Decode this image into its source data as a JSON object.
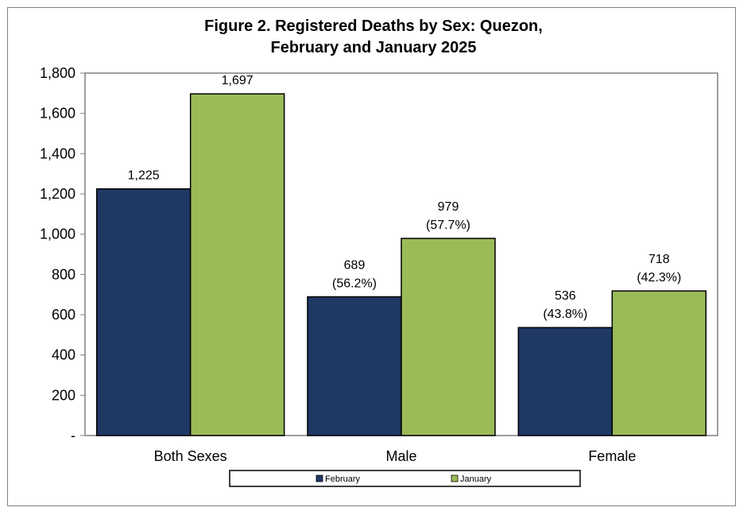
{
  "chart_data": {
    "type": "bar",
    "title_line1": "Figure 2. Registered Deaths by Sex: Quezon,",
    "title_line2": "February and January 2025",
    "categories": [
      "Both Sexes",
      "Male",
      "Female"
    ],
    "series": [
      {
        "name": "February",
        "color": "#1f3864",
        "values": [
          1225,
          689,
          536
        ],
        "labels": [
          [
            "1,225"
          ],
          [
            "689",
            "(56.2%)"
          ],
          [
            "536",
            "(43.8%)"
          ]
        ]
      },
      {
        "name": "January",
        "color": "#9bbb59",
        "values": [
          1697,
          979,
          718
        ],
        "labels": [
          [
            "1,697"
          ],
          [
            "979",
            "(57.7%)"
          ],
          [
            "718",
            "(42.3%)"
          ]
        ]
      }
    ],
    "ylim": [
      0,
      1800
    ],
    "yticks": [
      0,
      200,
      400,
      600,
      800,
      1000,
      1200,
      1400,
      1600,
      1800
    ],
    "ytick_labels": [
      "-",
      "200",
      "400",
      "600",
      "800",
      "1,000",
      "1,200",
      "1,400",
      "1,600",
      "1,800"
    ],
    "grid": false,
    "legend_position": "bottom"
  }
}
